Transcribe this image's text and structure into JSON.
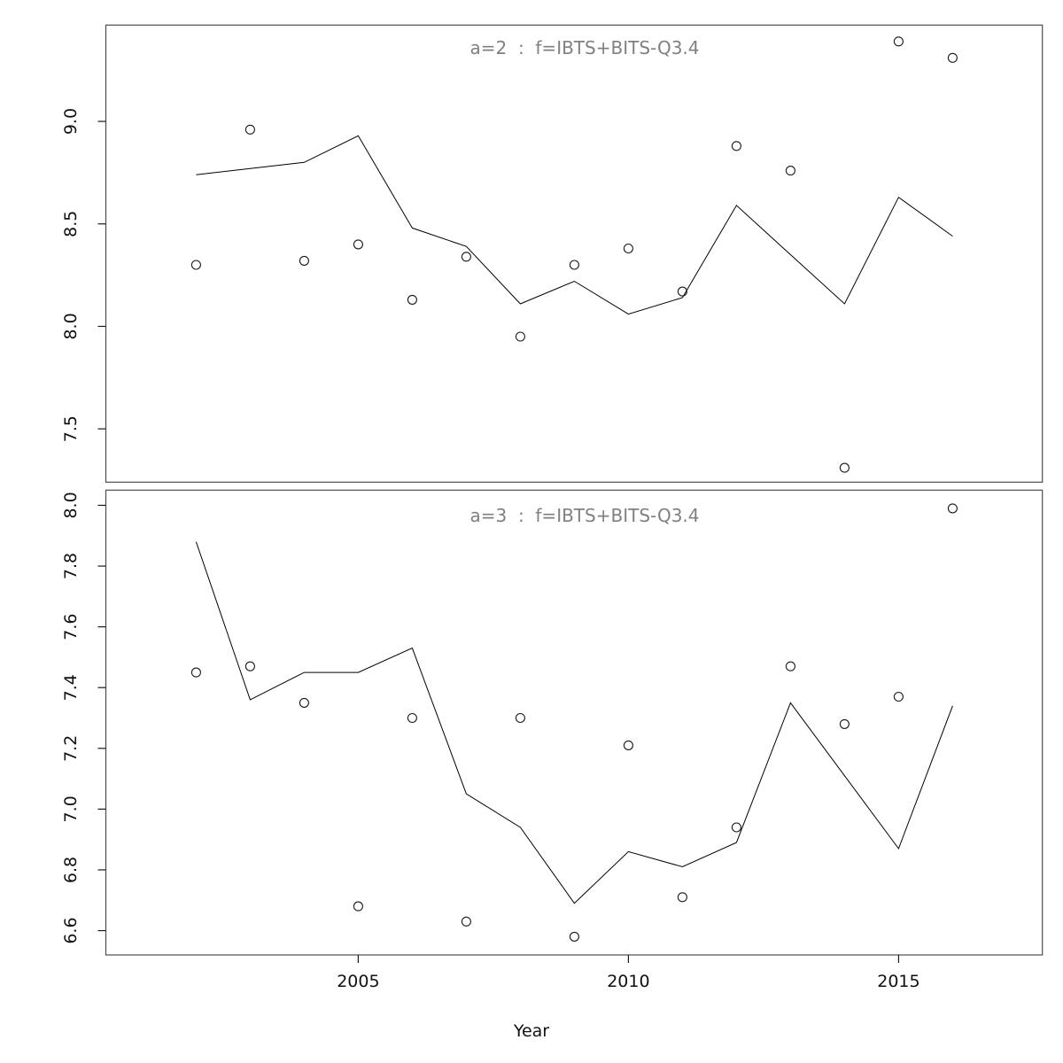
{
  "figure": {
    "background": "#ffffff",
    "frame_color": "#4d4d4d",
    "line_color": "#000000",
    "point_color": "#1a1a1a",
    "title_color": "#808080",
    "axis_text_color": "#111111",
    "x_axis_label": "Year"
  },
  "chart_data": [
    {
      "type": "line",
      "title": "a=2  :  f=IBTS+BITS-Q3.4",
      "xlabel": "Year",
      "ylabel": "",
      "x": [
        2002,
        2003,
        2004,
        2005,
        2006,
        2007,
        2008,
        2009,
        2010,
        2011,
        2012,
        2013,
        2014,
        2015,
        2016
      ],
      "series": [
        {
          "name": "observed-points",
          "style": "points",
          "values": [
            8.3,
            8.96,
            8.32,
            8.4,
            8.13,
            8.34,
            7.95,
            8.3,
            8.38,
            8.17,
            8.88,
            8.76,
            7.31,
            9.39,
            9.31
          ]
        },
        {
          "name": "fitted-line",
          "style": "line",
          "values": [
            8.74,
            8.77,
            8.8,
            8.93,
            8.48,
            8.39,
            8.11,
            8.22,
            8.06,
            8.14,
            8.59,
            8.35,
            8.11,
            8.63,
            8.44
          ]
        }
      ],
      "xlim": [
        2000.33,
        2017.66
      ],
      "ylim": [
        7.24,
        9.47
      ],
      "yticks": [
        7.5,
        8.0,
        8.5,
        9.0
      ],
      "ytick_labels": [
        "7.5",
        "8.0",
        "8.5",
        "9.0"
      ],
      "xticks": [
        2005,
        2010,
        2015
      ],
      "xtick_labels": [
        "2005",
        "2010",
        "2015"
      ],
      "x_axis_drawn": false,
      "grid": false,
      "legend": "none"
    },
    {
      "type": "line",
      "title": "a=3  :  f=IBTS+BITS-Q3.4",
      "xlabel": "Year",
      "ylabel": "",
      "x": [
        2002,
        2003,
        2004,
        2005,
        2006,
        2007,
        2008,
        2009,
        2010,
        2011,
        2012,
        2013,
        2014,
        2015,
        2016
      ],
      "series": [
        {
          "name": "observed-points",
          "style": "points",
          "values": [
            7.45,
            7.47,
            7.35,
            6.68,
            7.3,
            6.63,
            7.3,
            6.58,
            7.21,
            6.71,
            6.94,
            7.47,
            7.28,
            7.37,
            7.99
          ]
        },
        {
          "name": "fitted-line",
          "style": "line",
          "values": [
            7.88,
            7.36,
            7.45,
            7.45,
            7.53,
            7.05,
            6.94,
            6.69,
            6.86,
            6.81,
            6.89,
            7.35,
            7.11,
            6.87,
            7.34
          ]
        }
      ],
      "xlim": [
        2000.33,
        2017.66
      ],
      "ylim": [
        6.52,
        8.05
      ],
      "yticks": [
        6.6,
        6.8,
        7.0,
        7.2,
        7.4,
        7.6,
        7.8,
        8.0
      ],
      "ytick_labels": [
        "6.6",
        "6.8",
        "7.0",
        "7.2",
        "7.4",
        "7.6",
        "7.8",
        "8.0"
      ],
      "xticks": [
        2005,
        2010,
        2015
      ],
      "xtick_labels": [
        "2005",
        "2010",
        "2015"
      ],
      "x_axis_drawn": true,
      "grid": false,
      "legend": "none"
    }
  ]
}
